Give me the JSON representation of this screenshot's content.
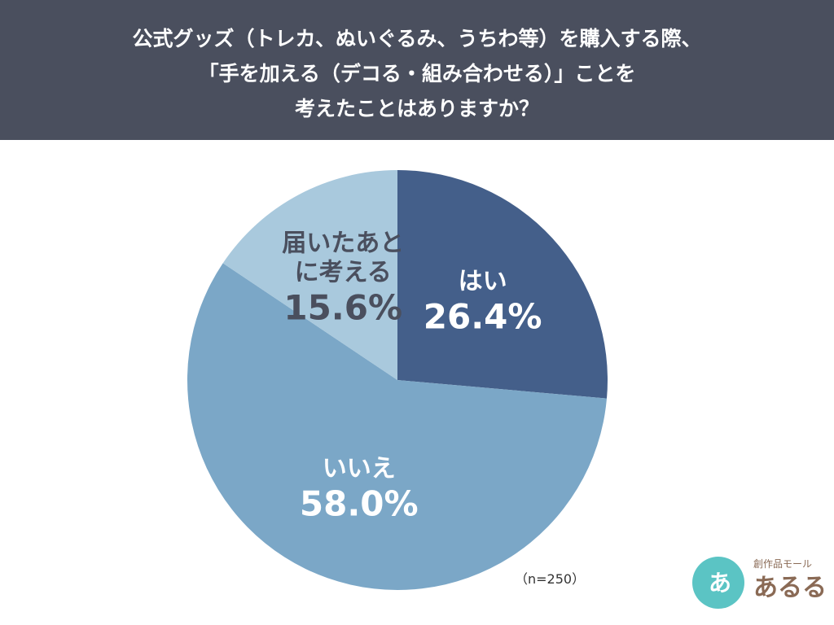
{
  "chart_data": {
    "type": "pie",
    "title": [
      "公式グッズ（トレカ、ぬいぐるみ、うちわ等）を購入する際、",
      "「手を加える（デコる・組み合わせる）」ことを",
      "考えたことはありますか？"
    ],
    "categories": [
      "はい",
      "いいえ",
      "届いたあとに考える"
    ],
    "values": [
      26.4,
      58.0,
      15.6
    ],
    "value_labels": [
      "26.4%",
      "58.0%",
      "15.6%"
    ],
    "colors": [
      "#445f8a",
      "#7ba7c7",
      "#a9c9dd"
    ],
    "label_colors": [
      "#ffffff",
      "#ffffff",
      "#4a4f5e"
    ],
    "note": "（n=250）"
  },
  "logo": {
    "mark": "あ",
    "tagline": "創作品モール",
    "name": "あるる"
  }
}
